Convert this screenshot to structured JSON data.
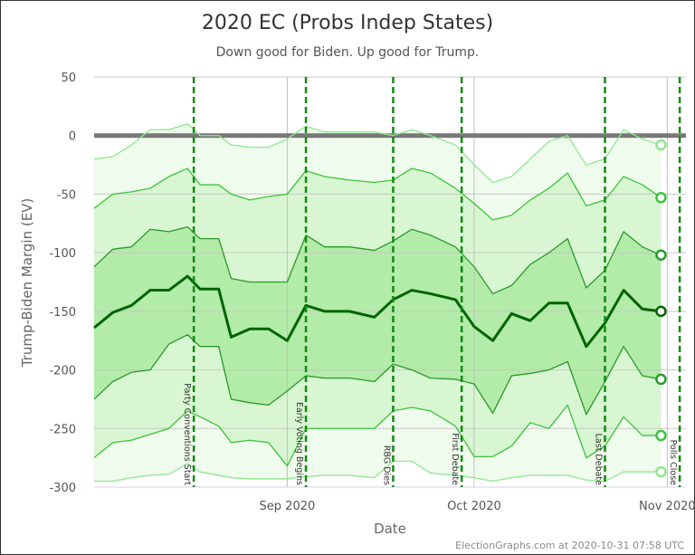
{
  "chart_data": {
    "type": "line",
    "title": "2020 EC (Probs Indep States)",
    "subtitle": "Down good for Biden. Up good for Trump.",
    "xlabel": "Date",
    "ylabel": "Trump-Biden Margin (EV)",
    "xlim": [
      "2020-08-01",
      "2020-11-04"
    ],
    "ylim": [
      -300,
      50
    ],
    "yticks": [
      50,
      0,
      -50,
      -100,
      -150,
      -200,
      -250,
      -300
    ],
    "xticks": [
      {
        "date": "2020-09-01",
        "label": "Sep 2020"
      },
      {
        "date": "2020-10-01",
        "label": "Oct 2020"
      },
      {
        "date": "2020-11-01",
        "label": "Nov 2020"
      }
    ],
    "grid": true,
    "zero_line": 0,
    "x": [
      "2020-08-01",
      "2020-08-04",
      "2020-08-07",
      "2020-08-10",
      "2020-08-13",
      "2020-08-16",
      "2020-08-18",
      "2020-08-21",
      "2020-08-23",
      "2020-08-26",
      "2020-08-29",
      "2020-09-01",
      "2020-09-04",
      "2020-09-07",
      "2020-09-11",
      "2020-09-15",
      "2020-09-18",
      "2020-09-21",
      "2020-09-24",
      "2020-09-28",
      "2020-10-01",
      "2020-10-04",
      "2020-10-07",
      "2020-10-10",
      "2020-10-13",
      "2020-10-16",
      "2020-10-19",
      "2020-10-22",
      "2020-10-25",
      "2020-10-28",
      "2020-10-31"
    ],
    "series": [
      {
        "key": "upper3",
        "color": "#8fe88f",
        "values": [
          -20,
          -18,
          -8,
          5,
          5,
          10,
          0,
          0,
          -8,
          -10,
          -10,
          -3,
          8,
          3,
          3,
          3,
          0,
          5,
          0,
          -8,
          -25,
          -40,
          -35,
          -20,
          -5,
          0,
          -25,
          -20,
          5,
          -3,
          -8
        ]
      },
      {
        "key": "upper2",
        "color": "#3cc43c",
        "values": [
          -62,
          -50,
          -48,
          -45,
          -35,
          -28,
          -42,
          -42,
          -50,
          -55,
          -52,
          -50,
          -30,
          -35,
          -38,
          -40,
          -38,
          -28,
          -32,
          -45,
          -58,
          -72,
          -68,
          -55,
          -45,
          -32,
          -60,
          -55,
          -35,
          -42,
          -53
        ]
      },
      {
        "key": "upper1",
        "color": "#2a9a2a",
        "values": [
          -112,
          -97,
          -95,
          -80,
          -82,
          -78,
          -88,
          -88,
          -122,
          -125,
          -125,
          -125,
          -85,
          -95,
          -95,
          -98,
          -90,
          -80,
          -85,
          -95,
          -112,
          -135,
          -128,
          -110,
          -100,
          -88,
          -130,
          -115,
          -82,
          -95,
          -102
        ]
      },
      {
        "key": "median",
        "color": "#006400",
        "values": [
          -164,
          -151,
          -145,
          -132,
          -132,
          -120,
          -131,
          -131,
          -172,
          -165,
          -165,
          -175,
          -145,
          -150,
          -150,
          -155,
          -140,
          -132,
          -135,
          -140,
          -163,
          -175,
          -152,
          -158,
          -143,
          -143,
          -180,
          -160,
          -132,
          -148,
          -150
        ]
      },
      {
        "key": "lower1",
        "color": "#2a9a2a",
        "values": [
          -225,
          -210,
          -202,
          -200,
          -178,
          -170,
          -180,
          -180,
          -225,
          -228,
          -230,
          -218,
          -205,
          -207,
          -207,
          -210,
          -195,
          -200,
          -207,
          -208,
          -212,
          -237,
          -205,
          -203,
          -200,
          -193,
          -238,
          -210,
          -180,
          -205,
          -208
        ]
      },
      {
        "key": "lower2",
        "color": "#3cc43c",
        "values": [
          -275,
          -262,
          -260,
          -255,
          -250,
          -235,
          -240,
          -248,
          -262,
          -260,
          -262,
          -282,
          -250,
          -250,
          -250,
          -250,
          -235,
          -232,
          -235,
          -248,
          -274,
          -274,
          -265,
          -245,
          -250,
          -230,
          -275,
          -265,
          -240,
          -256,
          -256
        ]
      },
      {
        "key": "lower3",
        "color": "#8fe88f",
        "values": [
          -295,
          -295,
          -292,
          -290,
          -289,
          -280,
          -287,
          -290,
          -292,
          -293,
          -293,
          -293,
          -291,
          -290,
          -290,
          -292,
          -278,
          -278,
          -288,
          -290,
          -292,
          -295,
          -292,
          -290,
          -290,
          -290,
          -294,
          -295,
          -287,
          -287,
          -287
        ]
      }
    ],
    "bands": [
      {
        "upper": "upper3",
        "lower": "lower3",
        "color": "#effbec"
      },
      {
        "upper": "upper2",
        "lower": "lower2",
        "color": "#d8f6d1"
      },
      {
        "upper": "upper1",
        "lower": "lower1",
        "color": "#b3eba9"
      }
    ],
    "events": [
      {
        "date": "2020-08-17",
        "label": "Party Conventions Start"
      },
      {
        "date": "2020-09-04",
        "label": "Early Voting Begins"
      },
      {
        "date": "2020-09-18",
        "label": "RBG Dies"
      },
      {
        "date": "2020-09-29",
        "label": "First Debate"
      },
      {
        "date": "2020-10-22",
        "label": "Last Debate"
      },
      {
        "date": "2020-11-03",
        "label": "Polls Close"
      }
    ],
    "event_color": "#118a11"
  },
  "footer": "ElectionGraphs.com at 2020-10-31 07:58 UTC"
}
